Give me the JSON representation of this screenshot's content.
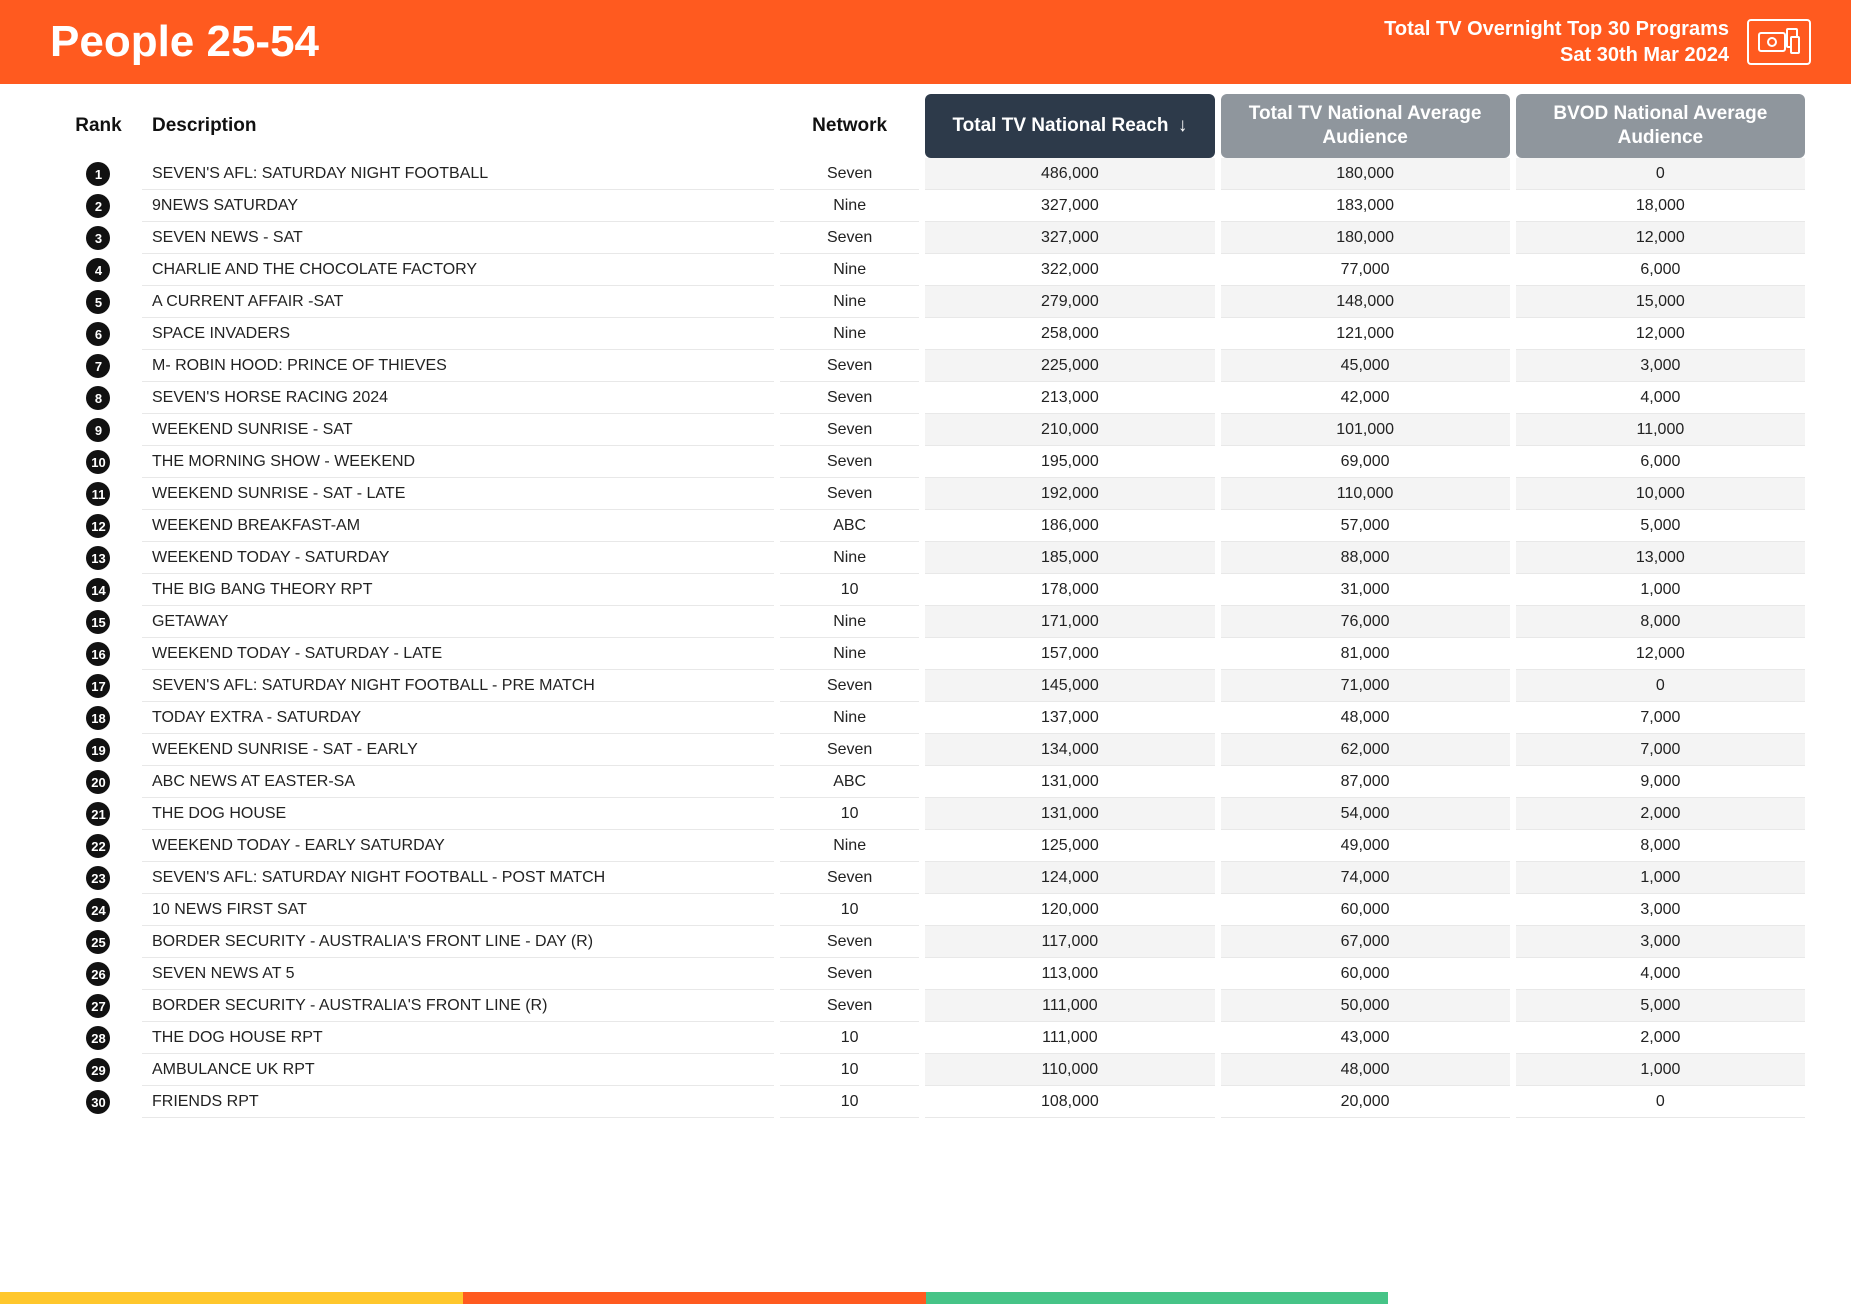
{
  "colors": {
    "header_bg": "#ff5a1f",
    "header_text": "#ffffff",
    "sorted_col_bg": "#2d3a4a",
    "metric_col_bg": "#8f969d",
    "rank_badge_bg": "#111111",
    "row_alt_bg": "#f4f4f4",
    "row_border": "#e8e8e8",
    "footer_stripes": [
      "#ffc72c",
      "#ff5a1f",
      "#46c487",
      "#ffffff"
    ]
  },
  "header": {
    "title": "People 25-54",
    "subtitle_line1": "Total TV Overnight Top 30 Programs",
    "subtitle_line2": "Sat 30th Mar 2024"
  },
  "table": {
    "columns": {
      "rank": "Rank",
      "description": "Description",
      "network": "Network",
      "reach": "Total TV National Reach",
      "avg_audience": "Total TV National Average Audience",
      "bvod": "BVOD National Average Audience"
    },
    "sort_indicator": "↓",
    "rows": [
      {
        "rank": "1",
        "description": "SEVEN'S AFL: SATURDAY NIGHT FOOTBALL",
        "network": "Seven",
        "reach": "486,000",
        "avg": "180,000",
        "bvod": "0"
      },
      {
        "rank": "2",
        "description": "9NEWS SATURDAY",
        "network": "Nine",
        "reach": "327,000",
        "avg": "183,000",
        "bvod": "18,000"
      },
      {
        "rank": "3",
        "description": "SEVEN NEWS - SAT",
        "network": "Seven",
        "reach": "327,000",
        "avg": "180,000",
        "bvod": "12,000"
      },
      {
        "rank": "4",
        "description": "CHARLIE AND THE CHOCOLATE FACTORY",
        "network": "Nine",
        "reach": "322,000",
        "avg": "77,000",
        "bvod": "6,000"
      },
      {
        "rank": "5",
        "description": "A CURRENT AFFAIR -SAT",
        "network": "Nine",
        "reach": "279,000",
        "avg": "148,000",
        "bvod": "15,000"
      },
      {
        "rank": "6",
        "description": "SPACE INVADERS",
        "network": "Nine",
        "reach": "258,000",
        "avg": "121,000",
        "bvod": "12,000"
      },
      {
        "rank": "7",
        "description": "M- ROBIN HOOD: PRINCE OF THIEVES",
        "network": "Seven",
        "reach": "225,000",
        "avg": "45,000",
        "bvod": "3,000"
      },
      {
        "rank": "8",
        "description": "SEVEN'S HORSE RACING 2024",
        "network": "Seven",
        "reach": "213,000",
        "avg": "42,000",
        "bvod": "4,000"
      },
      {
        "rank": "9",
        "description": "WEEKEND SUNRISE - SAT",
        "network": "Seven",
        "reach": "210,000",
        "avg": "101,000",
        "bvod": "11,000"
      },
      {
        "rank": "10",
        "description": "THE MORNING SHOW - WEEKEND",
        "network": "Seven",
        "reach": "195,000",
        "avg": "69,000",
        "bvod": "6,000"
      },
      {
        "rank": "11",
        "description": "WEEKEND SUNRISE - SAT - LATE",
        "network": "Seven",
        "reach": "192,000",
        "avg": "110,000",
        "bvod": "10,000"
      },
      {
        "rank": "12",
        "description": "WEEKEND BREAKFAST-AM",
        "network": "ABC",
        "reach": "186,000",
        "avg": "57,000",
        "bvod": "5,000"
      },
      {
        "rank": "13",
        "description": "WEEKEND TODAY - SATURDAY",
        "network": "Nine",
        "reach": "185,000",
        "avg": "88,000",
        "bvod": "13,000"
      },
      {
        "rank": "14",
        "description": "THE BIG BANG THEORY RPT",
        "network": "10",
        "reach": "178,000",
        "avg": "31,000",
        "bvod": "1,000"
      },
      {
        "rank": "15",
        "description": "GETAWAY",
        "network": "Nine",
        "reach": "171,000",
        "avg": "76,000",
        "bvod": "8,000"
      },
      {
        "rank": "16",
        "description": "WEEKEND TODAY - SATURDAY - LATE",
        "network": "Nine",
        "reach": "157,000",
        "avg": "81,000",
        "bvod": "12,000"
      },
      {
        "rank": "17",
        "description": "SEVEN'S AFL: SATURDAY NIGHT FOOTBALL - PRE MATCH",
        "network": "Seven",
        "reach": "145,000",
        "avg": "71,000",
        "bvod": "0"
      },
      {
        "rank": "18",
        "description": "TODAY EXTRA - SATURDAY",
        "network": "Nine",
        "reach": "137,000",
        "avg": "48,000",
        "bvod": "7,000"
      },
      {
        "rank": "19",
        "description": "WEEKEND SUNRISE - SAT - EARLY",
        "network": "Seven",
        "reach": "134,000",
        "avg": "62,000",
        "bvod": "7,000"
      },
      {
        "rank": "20",
        "description": "ABC NEWS AT EASTER-SA",
        "network": "ABC",
        "reach": "131,000",
        "avg": "87,000",
        "bvod": "9,000"
      },
      {
        "rank": "21",
        "description": "THE DOG HOUSE",
        "network": "10",
        "reach": "131,000",
        "avg": "54,000",
        "bvod": "2,000"
      },
      {
        "rank": "22",
        "description": "WEEKEND TODAY - EARLY SATURDAY",
        "network": "Nine",
        "reach": "125,000",
        "avg": "49,000",
        "bvod": "8,000"
      },
      {
        "rank": "23",
        "description": "SEVEN'S AFL: SATURDAY NIGHT FOOTBALL - POST MATCH",
        "network": "Seven",
        "reach": "124,000",
        "avg": "74,000",
        "bvod": "1,000"
      },
      {
        "rank": "24",
        "description": "10 NEWS FIRST SAT",
        "network": "10",
        "reach": "120,000",
        "avg": "60,000",
        "bvod": "3,000"
      },
      {
        "rank": "25",
        "description": "BORDER SECURITY - AUSTRALIA'S FRONT LINE - DAY (R)",
        "network": "Seven",
        "reach": "117,000",
        "avg": "67,000",
        "bvod": "3,000"
      },
      {
        "rank": "26",
        "description": "SEVEN NEWS AT 5",
        "network": "Seven",
        "reach": "113,000",
        "avg": "60,000",
        "bvod": "4,000"
      },
      {
        "rank": "27",
        "description": "BORDER SECURITY - AUSTRALIA'S FRONT LINE (R)",
        "network": "Seven",
        "reach": "111,000",
        "avg": "50,000",
        "bvod": "5,000"
      },
      {
        "rank": "28",
        "description": "THE DOG HOUSE RPT",
        "network": "10",
        "reach": "111,000",
        "avg": "43,000",
        "bvod": "2,000"
      },
      {
        "rank": "29",
        "description": "AMBULANCE UK RPT",
        "network": "10",
        "reach": "110,000",
        "avg": "48,000",
        "bvod": "1,000"
      },
      {
        "rank": "30",
        "description": "FRIENDS RPT",
        "network": "10",
        "reach": "108,000",
        "avg": "20,000",
        "bvod": "0"
      }
    ]
  },
  "footer_stripe_widths": [
    "25%",
    "25%",
    "25%",
    "25%"
  ]
}
